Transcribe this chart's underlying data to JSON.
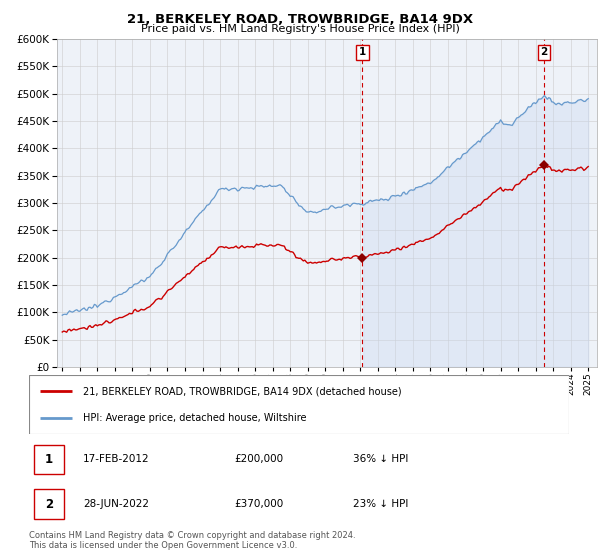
{
  "title1": "21, BERKELEY ROAD, TROWBRIDGE, BA14 9DX",
  "title2": "Price paid vs. HM Land Registry's House Price Index (HPI)",
  "legend1": "21, BERKELEY ROAD, TROWBRIDGE, BA14 9DX (detached house)",
  "legend2": "HPI: Average price, detached house, Wiltshire",
  "annotation1_label": "1",
  "annotation1_date": "17-FEB-2012",
  "annotation1_price": "£200,000",
  "annotation1_hpi": "36% ↓ HPI",
  "annotation2_label": "2",
  "annotation2_date": "28-JUN-2022",
  "annotation2_price": "£370,000",
  "annotation2_hpi": "23% ↓ HPI",
  "footnote": "Contains HM Land Registry data © Crown copyright and database right 2024.\nThis data is licensed under the Open Government Licence v3.0.",
  "sale1_year": 2012.12,
  "sale1_value": 200000,
  "sale2_year": 2022.49,
  "sale2_value": 370000,
  "property_color": "#cc0000",
  "hpi_color": "#6699cc",
  "hpi_fill_color": "#ddeeff",
  "vline_color": "#cc0000",
  "grid_color": "#cccccc",
  "plot_bg": "#eef2f8",
  "ylim_max": 600000,
  "ylim_min": 0,
  "xlim_min": 1994.7,
  "xlim_max": 2025.5
}
